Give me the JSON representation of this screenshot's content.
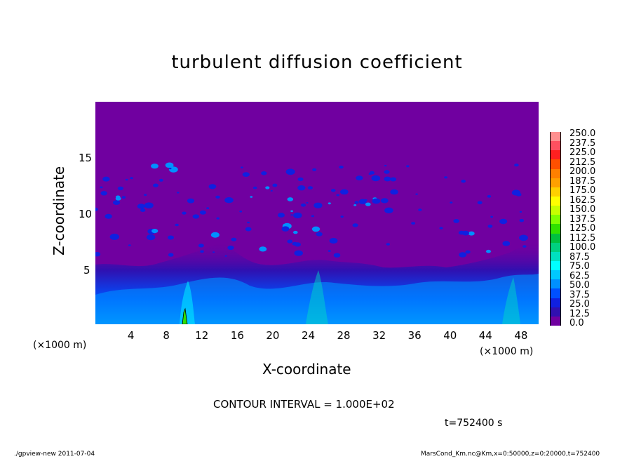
{
  "chart_data": {
    "type": "heatmap",
    "title": "turbulent diffusion coefficient",
    "xlabel": "X-coordinate",
    "ylabel": "Z-coordinate",
    "x_unit": "(×1000 m)",
    "y_unit": "(×1000 m)",
    "xlim": [
      0,
      50
    ],
    "ylim": [
      0,
      20
    ],
    "x_ticks": [
      "4",
      "8",
      "12",
      "16",
      "20",
      "24",
      "28",
      "32",
      "36",
      "40",
      "44",
      "48"
    ],
    "y_ticks": [
      "5",
      "10",
      "15"
    ],
    "colorbar_labels": [
      "250.0",
      "237.5",
      "225.0",
      "212.5",
      "200.0",
      "187.5",
      "175.0",
      "162.5",
      "150.0",
      "137.5",
      "125.0",
      "112.5",
      "100.0",
      "87.5",
      "75.0",
      "62.5",
      "50.0",
      "37.5",
      "25.0",
      "12.5",
      "0.0"
    ],
    "colorbar_colors": [
      "#ff9090",
      "#ff5060",
      "#ff2020",
      "#ff5000",
      "#ff8000",
      "#ffa000",
      "#ffd000",
      "#ffff00",
      "#c8ff00",
      "#80ff00",
      "#30e000",
      "#00c040",
      "#00d080",
      "#00e0c0",
      "#00ffff",
      "#00c8ff",
      "#0090ff",
      "#0050ff",
      "#1020e0",
      "#3010b0",
      "#7000a0"
    ],
    "contour_interval": "CONTOUR INTERVAL = 1.000E+02",
    "time_label": "t=752400 s",
    "background_color": "#7000a0"
  },
  "footer": {
    "left": "./gpview-new  2011-07-04",
    "right": "MarsCond_Km.nc@Km,x=0:50000,z=0:20000,t=752400"
  }
}
